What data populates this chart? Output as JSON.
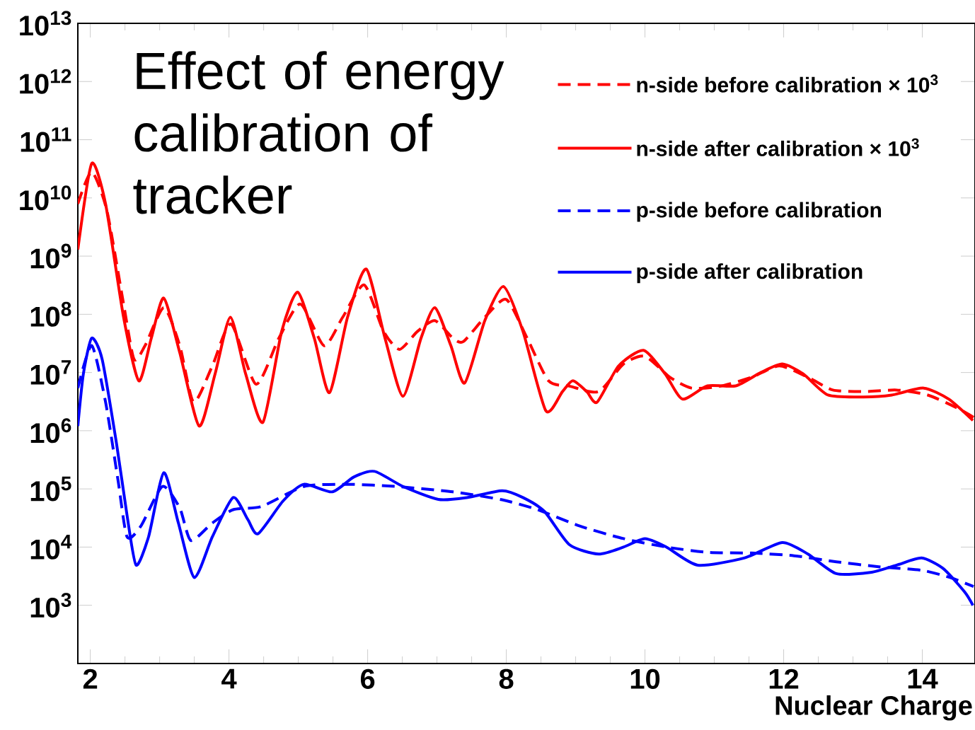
{
  "chart_data": {
    "type": "line",
    "title": "Effect of energy calibration of tracker",
    "xlabel": "Nuclear Charge",
    "xlim": [
      1.82,
      14.76
    ],
    "xticks": [
      2,
      4,
      6,
      8,
      10,
      12,
      14
    ],
    "ylim": [
      100,
      10000000000000.0
    ],
    "log": "y",
    "yticks": [
      {
        "value": 1000.0,
        "label": "10$^{3}$"
      },
      {
        "value": 10000.0,
        "label": "10$^{4}$"
      },
      {
        "value": 100000.0,
        "label": "10$^{5}$"
      },
      {
        "value": 1000000.0,
        "label": "10$^{6}$"
      },
      {
        "value": 10000000.0,
        "label": "10$^{7}$"
      },
      {
        "value": 100000000.0,
        "label": "10$^{8}$"
      },
      {
        "value": 1000000000.0,
        "label": "10$^{9}$"
      },
      {
        "value": 10000000000.0,
        "label": "10$^{10}$"
      },
      {
        "value": 100000000000.0,
        "label": "10$^{11}$"
      },
      {
        "value": 1000000000000.0,
        "label": "10$^{12}$"
      },
      {
        "value": 10000000000000.0,
        "label": "10$^{13}$"
      }
    ],
    "legend": "top right",
    "marker": "none",
    "series": [
      {
        "name": "n-side before calibration × 10$^{3}$",
        "color": "#ff0000",
        "line_style": "dashed",
        "x": [
          1.82,
          2.02,
          2.24,
          2.48,
          2.63,
          2.79,
          3.06,
          3.29,
          3.49,
          3.76,
          4.03,
          4.39,
          4.72,
          5.03,
          5.37,
          5.64,
          5.95,
          6.23,
          6.46,
          6.72,
          6.97,
          7.23,
          7.38,
          7.69,
          8.0,
          8.3,
          8.61,
          8.92,
          9.33,
          9.69,
          10.0,
          10.36,
          10.67,
          11.08,
          11.54,
          11.94,
          12.35,
          12.71,
          13.17,
          13.63,
          14.08,
          14.49,
          14.74
        ],
        "values": [
          7900000000.0,
          28000000000.0,
          6000000000.0,
          150000000.0,
          17000000.0,
          29000000.0,
          130000000.0,
          29000000.0,
          3100000.0,
          13000000.0,
          68000000.0,
          6300000.0,
          39000000.0,
          150000000.0,
          29000000.0,
          89000000.0,
          320000000.0,
          51000000.0,
          25000000.0,
          51000000.0,
          78000000.0,
          39000000.0,
          34000000.0,
          89000000.0,
          180000000.0,
          39000000.0,
          7200000.0,
          5800000.0,
          4700000.0,
          14000000.0,
          19000000.0,
          8300000.0,
          5400000.0,
          5800000.0,
          8300000.0,
          13000000.0,
          8300000.0,
          5000000.0,
          4700000.0,
          5000000.0,
          4100000.0,
          2500000.0,
          1700000.0
        ]
      },
      {
        "name": "n-side after calibration × 10$^{3}$",
        "color": "#ff0000",
        "line_style": "solid",
        "x": [
          1.82,
          2.02,
          2.22,
          2.48,
          2.7,
          2.88,
          3.06,
          3.29,
          3.57,
          3.8,
          4.02,
          4.24,
          4.49,
          4.76,
          4.99,
          5.23,
          5.45,
          5.71,
          5.98,
          6.25,
          6.51,
          6.77,
          6.97,
          7.2,
          7.4,
          7.69,
          7.96,
          8.24,
          8.57,
          8.81,
          8.96,
          9.16,
          9.31,
          9.62,
          9.98,
          10.29,
          10.54,
          10.9,
          11.31,
          11.67,
          11.98,
          12.28,
          12.64,
          13.15,
          13.56,
          14.02,
          14.38,
          14.73
        ],
        "values": [
          1300000000.0,
          39000000000.0,
          7900000000.0,
          89000000.0,
          7200000.0,
          39000000.0,
          190000000.0,
          22000000.0,
          1200000.0,
          9500000.0,
          89000000.0,
          9500000.0,
          1400000.0,
          51000000.0,
          240000000.0,
          39000000.0,
          4500000.0,
          89000000.0,
          600000000.0,
          39000000.0,
          3900000.0,
          39000000.0,
          130000000.0,
          29000000.0,
          6600000.0,
          78000000.0,
          300000000.0,
          51000000.0,
          2200000.0,
          4700000.0,
          7200000.0,
          4700000.0,
          3100000.0,
          13000000.0,
          24000000.0,
          9500000.0,
          3500000.0,
          5900000.0,
          5900000.0,
          10000000.0,
          14000000.0,
          9500000.0,
          4100000.0,
          3800000.0,
          4100000.0,
          5400000.0,
          3500000.0,
          1500000.0
        ]
      },
      {
        "name": "p-side before calibration",
        "color": "#0000ff",
        "line_style": "dashed",
        "x": [
          1.82,
          2.02,
          2.22,
          2.4,
          2.53,
          2.73,
          3.04,
          3.29,
          3.45,
          3.76,
          4.06,
          4.47,
          5.08,
          5.7,
          6.41,
          7.23,
          7.94,
          8.45,
          9.06,
          9.69,
          10.31,
          10.92,
          11.54,
          12.15,
          12.76,
          13.37,
          13.99,
          14.4,
          14.74
        ],
        "values": [
          5400000.0,
          29000000.0,
          3100000.0,
          140000.0,
          15000.0,
          23000.0,
          110000.0,
          47000.0,
          13000.0,
          26000.0,
          44000.0,
          50000.0,
          110000.0,
          120000.0,
          110000.0,
          89000.0,
          65000.0,
          44000.0,
          23000.0,
          14000.0,
          10000.0,
          8100.0,
          7900.0,
          7100.0,
          5600.0,
          4600.0,
          4000.0,
          3000.0,
          2100.0
        ]
      },
      {
        "name": "p-side after calibration",
        "color": "#0000ff",
        "line_style": "solid",
        "x": [
          1.82,
          1.9,
          2.02,
          2.17,
          2.38,
          2.53,
          2.66,
          2.84,
          3.06,
          3.27,
          3.5,
          3.76,
          4.06,
          4.27,
          4.42,
          4.78,
          5.08,
          5.49,
          5.8,
          6.1,
          6.51,
          7.02,
          7.43,
          7.94,
          8.24,
          8.55,
          8.91,
          9.33,
          9.69,
          10.0,
          10.31,
          10.76,
          11.43,
          11.98,
          12.35,
          12.76,
          13.27,
          13.63,
          13.99,
          14.3,
          14.61,
          14.73
        ],
        "values": [
          1200000.0,
          9500000.0,
          39000000.0,
          17000000.0,
          580000.0,
          35000.0,
          4900.0,
          15000.0,
          190000.0,
          26000.0,
          3000.0,
          15000.0,
          71000.0,
          30000.0,
          17000.0,
          62000.0,
          120000.0,
          89000.0,
          160000.0,
          200000.0,
          110000.0,
          66000.0,
          71000.0,
          93000.0,
          71000.0,
          41000.0,
          11000.0,
          7600.0,
          10000.0,
          14000.0,
          10000.0,
          4900.0,
          6500.0,
          12000.0,
          7600.0,
          3500.0,
          3700.0,
          4900.0,
          6500.0,
          4300.0,
          1700.0,
          1000.0
        ]
      }
    ]
  }
}
